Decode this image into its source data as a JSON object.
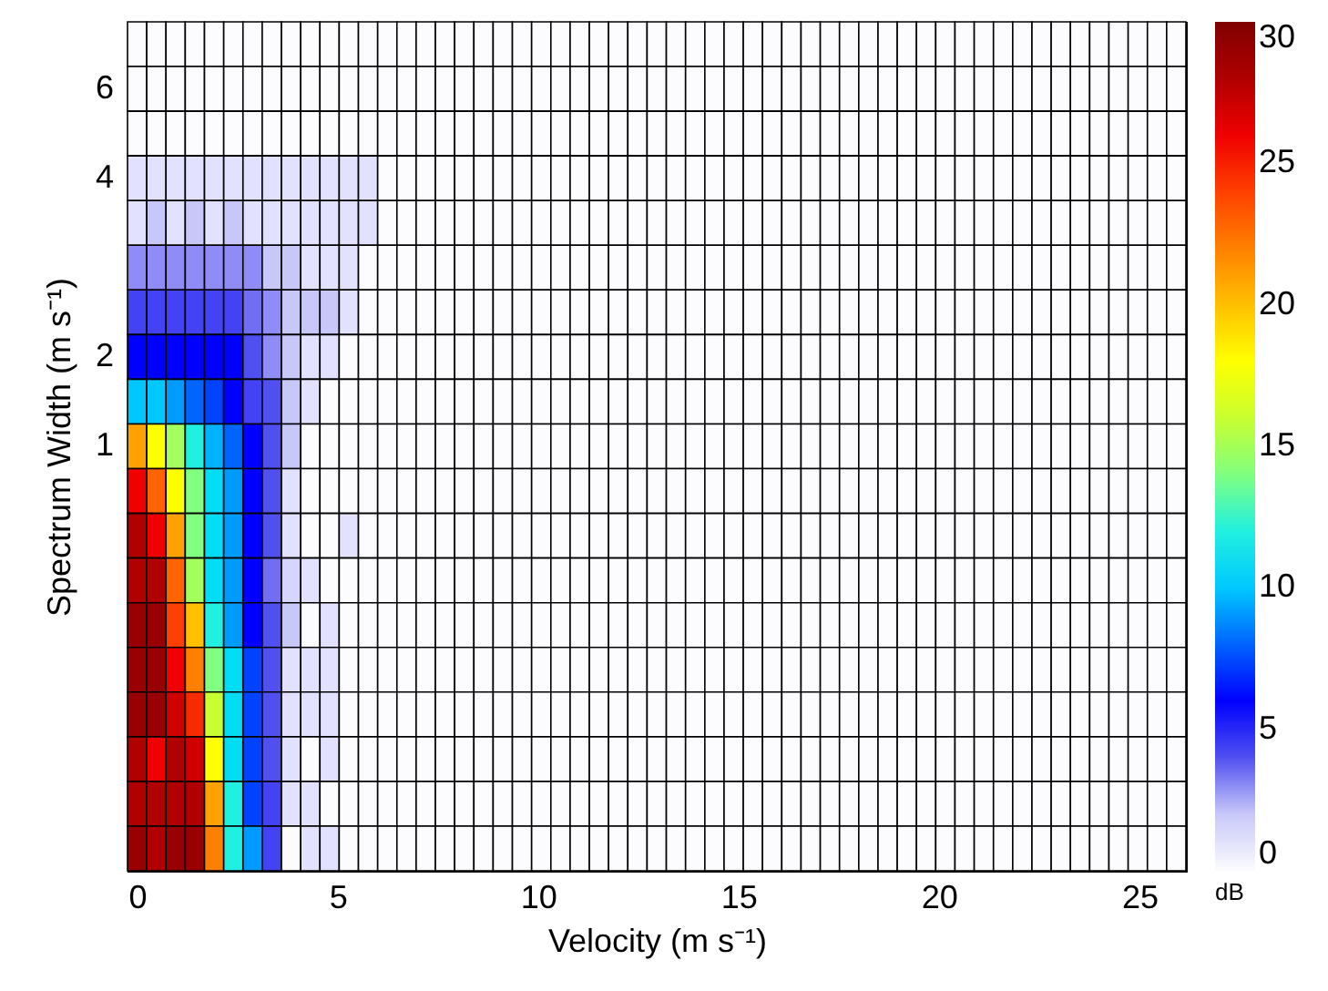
{
  "chart_data": {
    "type": "heatmap",
    "xlabel": "Velocity (m s⁻¹)",
    "ylabel": "Spectrum Width (m s⁻¹)",
    "clabel": "dB",
    "x": [
      0,
      0.48,
      0.96,
      1.44,
      1.92,
      2.4,
      2.88,
      3.36,
      3.84,
      4.32,
      4.8,
      5.28,
      5.76,
      6.24,
      6.72,
      7.2,
      7.68,
      8.16,
      8.64,
      9.12,
      9.6,
      10.08,
      10.56,
      11.04,
      11.52,
      12,
      12.48,
      12.96,
      13.44,
      13.92,
      14.4,
      14.88,
      15.36,
      15.84,
      16.32,
      16.8,
      17.28,
      17.76,
      18.24,
      18.72,
      19.2,
      19.68,
      20.16,
      20.64,
      21.12,
      21.6,
      22.08,
      22.56,
      23.04,
      23.52,
      24,
      24.48,
      24.96,
      25.44,
      25.92
    ],
    "xlim": [
      -0.24,
      26.16
    ],
    "xticks": [
      0,
      5,
      10,
      15,
      20,
      25
    ],
    "y_categories": [
      null,
      "6",
      null,
      "4",
      null,
      null,
      null,
      "2",
      null,
      "1",
      null,
      null,
      null,
      null,
      null,
      null,
      null,
      null,
      null
    ],
    "clim": [
      0,
      30
    ],
    "cticks": [
      0,
      5,
      10,
      15,
      20,
      25,
      30
    ],
    "colors": [
      "#ffffff",
      "#c8c8f8",
      "#5050f0",
      "#0000ff",
      "#0064ff",
      "#00c8ff",
      "#20f0e0",
      "#80ff80",
      "#c8ff30",
      "#ffff00",
      "#ffc000",
      "#ff8000",
      "#ff4000",
      "#f00000",
      "#b00000",
      "#800000"
    ],
    "cells": [
      [
        0,
        0,
        0,
        0,
        0,
        0,
        0,
        0,
        0,
        0,
        0,
        0,
        0,
        0,
        0,
        0,
        0,
        0,
        0,
        0,
        0,
        0,
        0,
        0,
        0,
        0,
        0,
        0,
        0,
        0,
        0,
        0,
        0,
        0,
        0,
        0,
        0,
        0,
        0,
        0,
        0,
        0,
        0,
        0,
        0,
        0,
        0,
        0,
        0,
        0,
        0,
        0,
        0,
        0,
        0
      ],
      [
        0,
        0,
        0,
        0,
        0,
        0,
        0,
        0,
        0,
        0,
        0,
        0,
        0,
        0,
        0,
        0,
        0,
        0,
        0,
        0,
        0,
        0,
        0,
        0,
        0,
        0,
        0,
        0,
        0,
        0,
        0,
        0,
        0,
        0,
        0,
        0,
        0,
        0,
        0,
        0,
        0,
        0,
        0,
        0,
        0,
        0,
        0,
        0,
        0,
        0,
        0,
        0,
        0,
        0,
        0
      ],
      [
        0,
        0,
        0,
        0,
        0,
        0,
        0,
        0,
        0,
        0,
        0,
        0,
        0,
        0,
        0,
        0,
        0,
        0,
        0,
        0,
        0,
        0,
        0,
        0,
        0,
        0,
        0,
        0,
        0,
        0,
        0,
        0,
        0,
        0,
        0,
        0,
        0,
        0,
        0,
        0,
        0,
        0,
        0,
        0,
        0,
        0,
        0,
        0,
        0,
        0,
        0,
        0,
        0,
        0,
        0
      ],
      [
        1,
        1,
        1,
        1,
        1,
        1,
        1,
        1,
        1,
        1,
        1,
        1,
        1,
        0,
        0,
        0,
        0,
        0,
        0,
        0,
        0,
        0,
        0,
        0,
        0,
        0,
        0,
        0,
        0,
        0,
        0,
        0,
        0,
        0,
        0,
        0,
        0,
        0,
        0,
        0,
        0,
        0,
        0,
        0,
        0,
        0,
        0,
        0,
        0,
        0,
        0,
        0,
        0,
        0,
        0
      ],
      [
        1,
        2,
        1,
        2,
        1,
        2,
        1,
        1,
        1,
        1,
        1,
        1,
        1,
        0,
        0,
        0,
        0,
        0,
        0,
        0,
        0,
        0,
        0,
        0,
        0,
        0,
        0,
        0,
        0,
        0,
        0,
        0,
        0,
        0,
        0,
        0,
        0,
        0,
        0,
        0,
        0,
        0,
        0,
        0,
        0,
        0,
        0,
        0,
        0,
        0,
        0,
        0,
        0,
        0,
        0
      ],
      [
        3,
        3,
        3,
        3,
        3,
        3,
        3,
        2,
        2,
        1,
        1,
        1,
        0,
        0,
        0,
        0,
        0,
        0,
        0,
        0,
        0,
        0,
        0,
        0,
        0,
        0,
        0,
        0,
        0,
        0,
        0,
        0,
        0,
        0,
        0,
        0,
        0,
        0,
        0,
        0,
        0,
        0,
        0,
        0,
        0,
        0,
        0,
        0,
        0,
        0,
        0,
        0,
        0,
        0,
        0
      ],
      [
        4.5,
        4.5,
        4.5,
        4.5,
        4.5,
        4.5,
        3.5,
        3,
        2,
        2,
        2,
        1,
        0,
        0,
        0,
        0,
        0,
        0,
        0,
        0,
        0,
        0,
        0,
        0,
        0,
        0,
        0,
        0,
        0,
        0,
        0,
        0,
        0,
        0,
        0,
        0,
        0,
        0,
        0,
        0,
        0,
        0,
        0,
        0,
        0,
        0,
        0,
        0,
        0,
        0,
        0,
        0,
        0,
        0,
        0
      ],
      [
        6,
        6,
        6,
        6,
        6,
        6,
        4,
        3,
        2,
        1,
        1,
        0,
        0,
        0,
        0,
        0,
        0,
        0,
        0,
        0,
        0,
        0,
        0,
        0,
        0,
        0,
        0,
        0,
        0,
        0,
        0,
        0,
        0,
        0,
        0,
        0,
        0,
        0,
        0,
        0,
        0,
        0,
        0,
        0,
        0,
        0,
        0,
        0,
        0,
        0,
        0,
        0,
        0,
        0,
        0
      ],
      [
        10,
        10,
        9,
        8,
        7,
        6,
        4.5,
        4,
        2,
        1,
        0,
        0,
        0,
        0,
        0,
        0,
        0,
        0,
        0,
        0,
        0,
        0,
        0,
        0,
        0,
        0,
        0,
        0,
        0,
        0,
        0,
        0,
        0,
        0,
        0,
        0,
        0,
        0,
        0,
        0,
        0,
        0,
        0,
        0,
        0,
        0,
        0,
        0,
        0,
        0,
        0,
        0,
        0,
        0,
        0
      ],
      [
        21,
        18,
        15,
        12,
        9.5,
        8,
        6,
        4,
        2,
        0,
        0,
        0,
        0,
        0,
        0,
        0,
        0,
        0,
        0,
        0,
        0,
        0,
        0,
        0,
        0,
        0,
        0,
        0,
        0,
        0,
        0,
        0,
        0,
        0,
        0,
        0,
        0,
        0,
        0,
        0,
        0,
        0,
        0,
        0,
        0,
        0,
        0,
        0,
        0,
        0,
        0,
        0,
        0,
        0,
        0
      ],
      [
        26,
        23,
        18,
        14,
        11,
        9,
        6,
        4,
        1,
        0,
        0,
        0,
        0,
        0,
        0,
        0,
        0,
        0,
        0,
        0,
        0,
        0,
        0,
        0,
        0,
        0,
        0,
        0,
        0,
        0,
        0,
        0,
        0,
        0,
        0,
        0,
        0,
        0,
        0,
        0,
        0,
        0,
        0,
        0,
        0,
        0,
        0,
        0,
        0,
        0,
        0,
        0,
        0,
        0,
        0
      ],
      [
        28,
        26,
        21,
        14,
        11,
        9,
        6,
        4,
        1,
        0,
        0,
        1,
        0,
        0,
        0,
        0,
        0,
        0,
        0,
        0,
        0,
        0,
        0,
        0,
        0,
        0,
        0,
        0,
        0,
        0,
        0,
        0,
        0,
        0,
        0,
        0,
        0,
        0,
        0,
        0,
        0,
        0,
        0,
        0,
        0,
        0,
        0,
        0,
        0,
        0,
        0,
        0,
        0,
        0,
        0
      ],
      [
        28,
        28,
        23,
        15,
        11,
        9,
        6,
        3.5,
        1.5,
        1,
        0,
        0,
        0,
        0,
        0,
        0,
        0,
        0,
        0,
        0,
        0,
        0,
        0,
        0,
        0,
        0,
        0,
        0,
        0,
        0,
        0,
        0,
        0,
        0,
        0,
        0,
        0,
        0,
        0,
        0,
        0,
        0,
        0,
        0,
        0,
        0,
        0,
        0,
        0,
        0,
        0,
        0,
        0,
        0,
        0
      ],
      [
        29,
        29,
        24,
        20,
        12,
        9,
        6,
        4,
        2,
        0,
        1,
        0,
        0,
        0,
        0,
        0,
        0,
        0,
        0,
        0,
        0,
        0,
        0,
        0,
        0,
        0,
        0,
        0,
        0,
        0,
        0,
        0,
        0,
        0,
        0,
        0,
        0,
        0,
        0,
        0,
        0,
        0,
        0,
        0,
        0,
        0,
        0,
        0,
        0,
        0,
        0,
        0,
        0,
        0,
        0
      ],
      [
        29,
        29,
        26,
        22,
        14,
        11,
        7,
        4,
        1,
        1,
        1,
        0,
        0,
        0,
        0,
        0,
        0,
        0,
        0,
        0,
        0,
        0,
        0,
        0,
        0,
        0,
        0,
        0,
        0,
        0,
        0,
        0,
        0,
        0,
        0,
        0,
        0,
        0,
        0,
        0,
        0,
        0,
        0,
        0,
        0,
        0,
        0,
        0,
        0,
        0,
        0,
        0,
        0,
        0,
        0
      ],
      [
        29,
        29,
        27,
        25,
        16,
        11,
        7,
        4,
        1,
        1,
        1,
        0,
        0,
        0,
        0,
        0,
        0,
        0,
        0,
        0,
        0,
        0,
        0,
        0,
        0,
        0,
        0,
        0,
        0,
        0,
        0,
        0,
        0,
        0,
        0,
        0,
        0,
        0,
        0,
        0,
        0,
        0,
        0,
        0,
        0,
        0,
        0,
        0,
        0,
        0,
        0,
        0,
        0,
        0,
        0
      ],
      [
        28,
        26,
        28,
        27,
        18,
        11,
        7,
        4,
        1,
        0,
        1,
        0,
        0,
        0,
        0,
        0,
        0,
        0,
        0,
        0,
        0,
        0,
        0,
        0,
        0,
        0,
        0,
        0,
        0,
        0,
        0,
        0,
        0,
        0,
        0,
        0,
        0,
        0,
        0,
        0,
        0,
        0,
        0,
        0,
        0,
        0,
        0,
        0,
        0,
        0,
        0,
        0,
        0,
        0,
        0
      ],
      [
        28,
        28,
        28,
        28,
        21,
        12,
        7,
        4.5,
        1,
        1,
        0,
        0,
        0,
        0,
        0,
        0,
        0,
        0,
        0,
        0,
        0,
        0,
        0,
        0,
        0,
        0,
        0,
        0,
        0,
        0,
        0,
        0,
        0,
        0,
        0,
        0,
        0,
        0,
        0,
        0,
        0,
        0,
        0,
        0,
        0,
        0,
        0,
        0,
        0,
        0,
        0,
        0,
        0,
        0,
        0
      ],
      [
        29,
        28,
        29,
        29,
        22,
        12,
        9,
        4.5,
        0,
        1,
        1,
        0,
        0,
        0,
        0,
        0,
        0,
        0,
        0,
        0,
        0,
        0,
        0,
        0,
        0,
        0,
        0,
        0,
        0,
        0,
        0,
        0,
        0,
        0,
        0,
        0,
        0,
        0,
        0,
        0,
        0,
        0,
        0,
        0,
        0,
        0,
        0,
        0,
        0,
        0,
        0,
        0,
        0,
        0,
        0
      ]
    ]
  }
}
